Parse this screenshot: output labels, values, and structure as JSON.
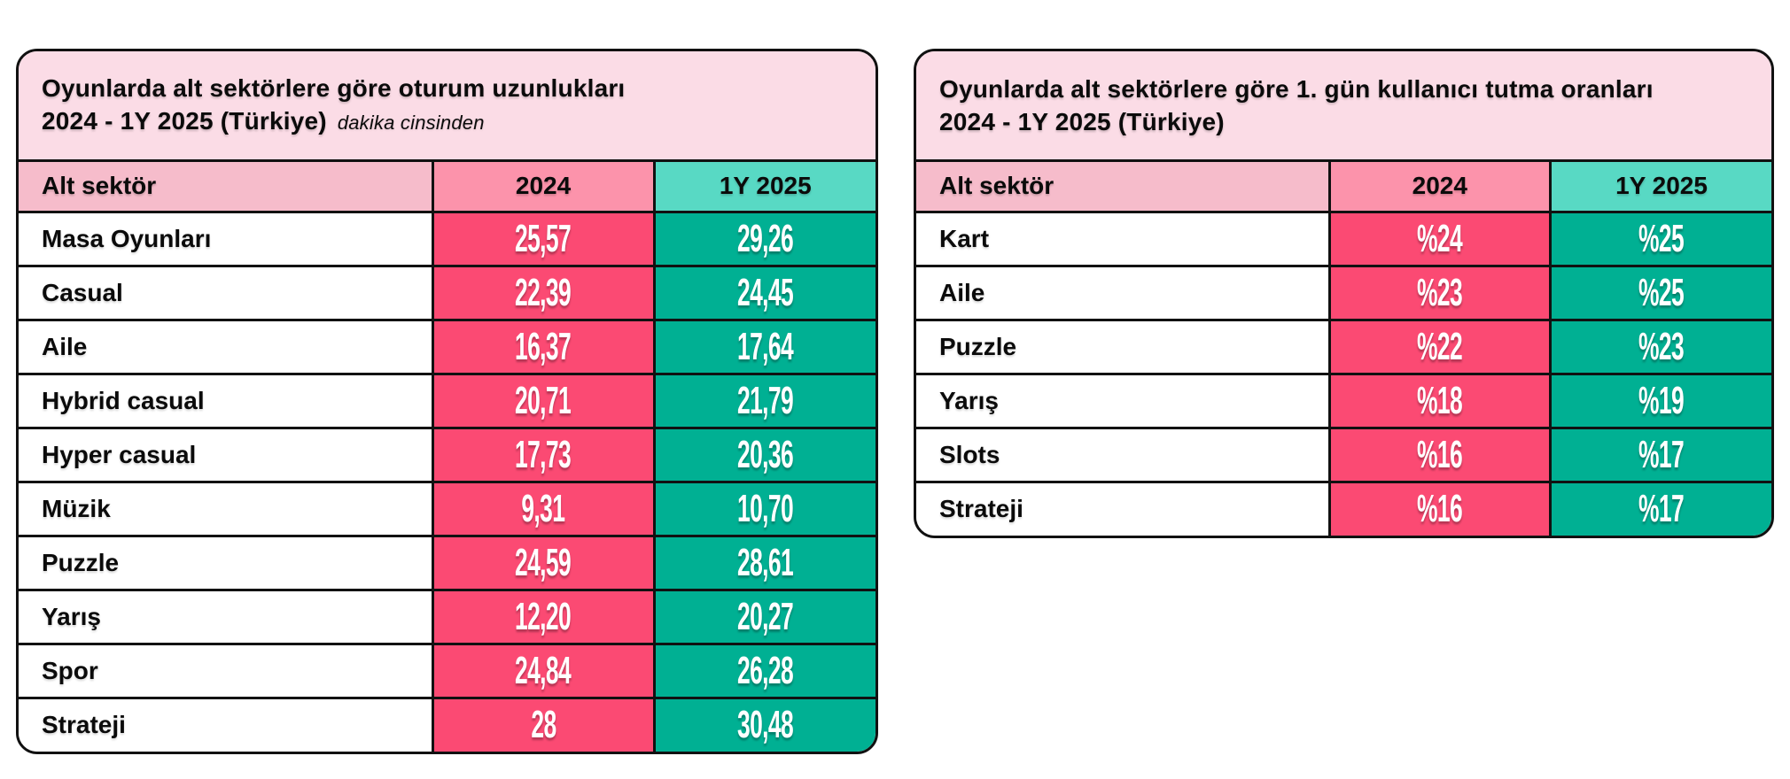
{
  "colors": {
    "title_bg": "#fbdce6",
    "label_header_bg": "#f6bccb",
    "col2024_header_bg": "#fc93ab",
    "col2025_header_bg": "#58d9c4",
    "col2024_cell_bg": "#fb4a73",
    "col2025_cell_bg": "#00b093",
    "border": "#111111",
    "value_text": "#ffffff",
    "label_text": "#000000"
  },
  "chart_data": [
    {
      "type": "table",
      "title": "Oyunlarda alt sektörlere göre oturum uzunlukları",
      "subtitle": "2024 - 1Y 2025 (Türkiye)",
      "note": "dakika cinsinden",
      "columns": [
        "Alt sektör",
        "2024",
        "1Y 2025"
      ],
      "rows": [
        {
          "label": "Masa Oyunları",
          "y2024": "25,57",
          "y2025": "29,26"
        },
        {
          "label": "Casual",
          "y2024": "22,39",
          "y2025": "24,45"
        },
        {
          "label": "Aile",
          "y2024": "16,37",
          "y2025": "17,64"
        },
        {
          "label": "Hybrid casual",
          "y2024": "20,71",
          "y2025": "21,79"
        },
        {
          "label": "Hyper casual",
          "y2024": "17,73",
          "y2025": "20,36"
        },
        {
          "label": "Müzik",
          "y2024": "9,31",
          "y2025": "10,70"
        },
        {
          "label": "Puzzle",
          "y2024": "24,59",
          "y2025": "28,61"
        },
        {
          "label": "Yarış",
          "y2024": "12,20",
          "y2025": "20,27"
        },
        {
          "label": "Spor",
          "y2024": "24,84",
          "y2025": "26,28"
        },
        {
          "label": "Strateji",
          "y2024": "28",
          "y2025": "30,48"
        }
      ]
    },
    {
      "type": "table",
      "title": "Oyunlarda alt sektörlere göre 1. gün kullanıcı tutma oranları",
      "subtitle": "2024 - 1Y 2025 (Türkiye)",
      "note": "",
      "columns": [
        "Alt sektör",
        "2024",
        "1Y 2025"
      ],
      "rows": [
        {
          "label": "Kart",
          "y2024": "%24",
          "y2025": "%25"
        },
        {
          "label": "Aile",
          "y2024": "%23",
          "y2025": "%25"
        },
        {
          "label": "Puzzle",
          "y2024": "%22",
          "y2025": "%23"
        },
        {
          "label": "Yarış",
          "y2024": "%18",
          "y2025": "%19"
        },
        {
          "label": "Slots",
          "y2024": "%16",
          "y2025": "%17"
        },
        {
          "label": "Strateji",
          "y2024": "%16",
          "y2025": "%17"
        }
      ]
    }
  ]
}
